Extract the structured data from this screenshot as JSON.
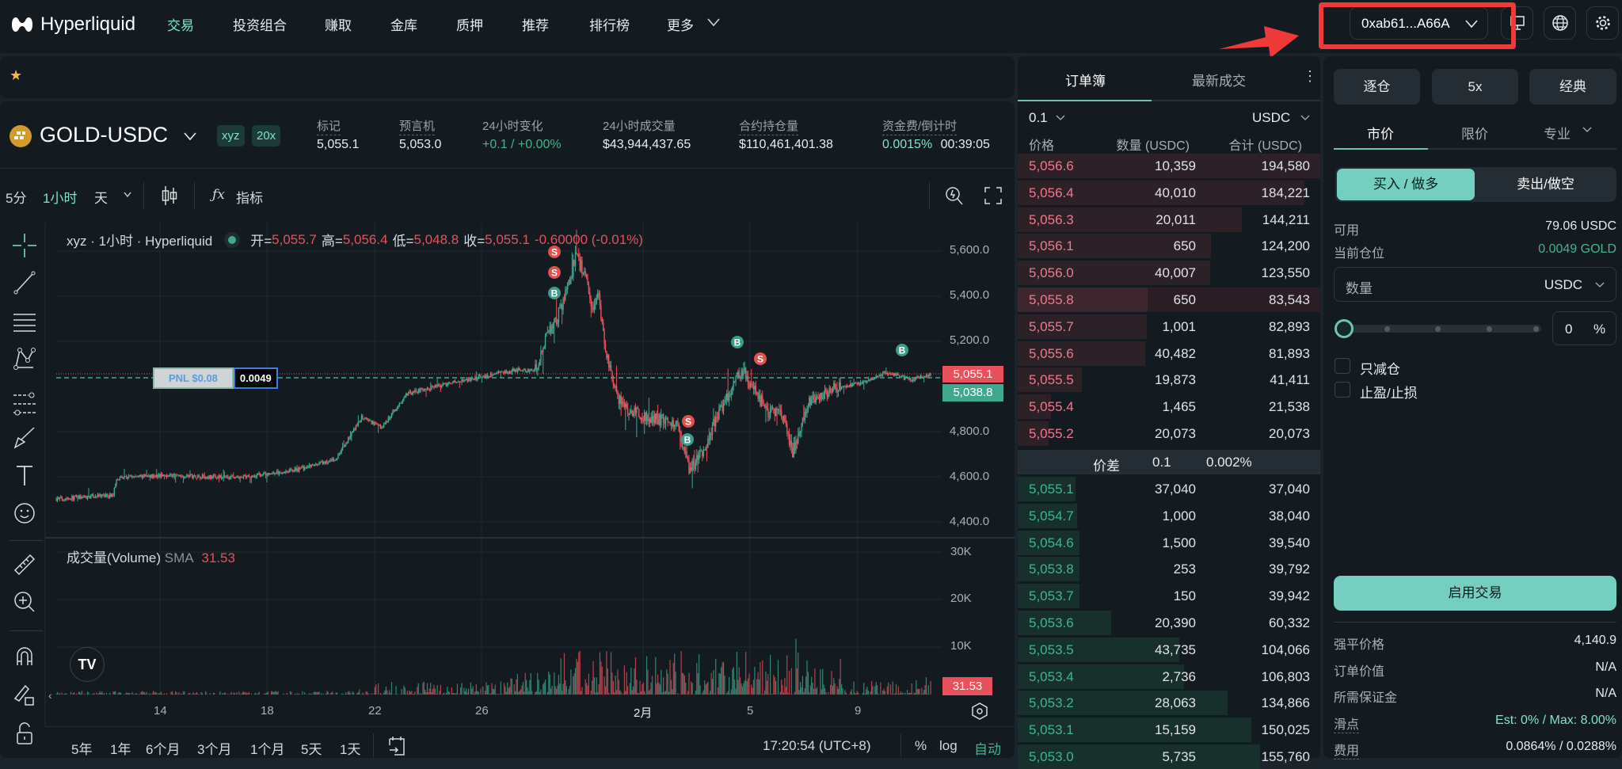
{
  "nav": {
    "brand": "Hyperliquid",
    "items": [
      "交易",
      "投资组合",
      "赚取",
      "金库",
      "质押",
      "推荐",
      "排行榜",
      "更多"
    ],
    "wallet": "0xab61...A66A"
  },
  "symbol": {
    "name": "GOLD-USDC",
    "dex": "xyz",
    "leverage": "20x",
    "stats": [
      {
        "label": "标记",
        "value": "5,055.1"
      },
      {
        "label": "预言机",
        "value": "5,053.0"
      },
      {
        "label": "24小时变化",
        "value": "+0.1 / +0.00%"
      },
      {
        "label": "24小时成交量",
        "value": "$43,944,437.65"
      },
      {
        "label": "合约持仓量",
        "value": "$110,461,401.38"
      },
      {
        "label": "资金费/倒计时",
        "value": "0.0015%",
        "value2": "00:39:05"
      }
    ]
  },
  "chart_toolbar": {
    "intervals": [
      "5分",
      "1小时",
      "天"
    ],
    "active_interval": "1小时",
    "indicators": "指标"
  },
  "chart": {
    "legend_title": "xyz · 1小时 · Hyperliquid",
    "ohlc": {
      "o_label": "开=",
      "o": "5,055.7",
      "h_label": "高=",
      "h": "5,056.4",
      "l_label": "低=",
      "l": "5,048.8",
      "c_label": "收=",
      "c": "5,055.1",
      "change": "-0.60000 (-0.01%)"
    },
    "price_ticks": [
      "5,600.0",
      "5,400.0",
      "5,200.0",
      "4,800.0",
      "4,600.0",
      "4,400.0"
    ],
    "last_price": "5,055.1",
    "entry_price": "5,038.8",
    "pnl_label": "PNL $0.08",
    "position_size": "0.0049",
    "volume_label": "成交量(Volume)",
    "sma_label": "SMA",
    "sma_value": "31.53",
    "volume_ticks": [
      "30K",
      "20K",
      "10K"
    ],
    "time_ticks": [
      "14",
      "18",
      "22",
      "26",
      "2月",
      "5",
      "9"
    ],
    "markers": [
      "S",
      "S",
      "B",
      "B",
      "S",
      "S",
      "B",
      "B"
    ],
    "price_outline": [
      [
        "01-10 03",
        4502
      ],
      [
        "01-12 06",
        4519
      ],
      [
        "01-12 09",
        4596
      ],
      [
        "01-14 07",
        4607
      ],
      [
        "01-16 23",
        4596
      ],
      [
        "01-19 03",
        4631
      ],
      [
        "01-20 14",
        4677
      ],
      [
        "01-21 13",
        4863
      ],
      [
        "01-22 07",
        4818
      ],
      [
        "01-23 06",
        4968
      ],
      [
        "01-24 23",
        5017
      ],
      [
        "01-27 09",
        5074
      ],
      [
        "01-28 03",
        5074
      ],
      [
        "01-28 08",
        5193
      ],
      [
        "01-28 19",
        5284
      ],
      [
        "01-29 07",
        5449
      ],
      [
        "01-29 13",
        5579
      ],
      [
        "01-29 22",
        5495
      ],
      [
        "01-30 03",
        5333
      ],
      [
        "01-30 09",
        5425
      ],
      [
        "01-30 15",
        5179
      ],
      [
        "01-31 00",
        4982
      ],
      [
        "01-31 09",
        4898
      ],
      [
        "02-01 07",
        4863
      ],
      [
        "02-02 07",
        4842
      ],
      [
        "02-02 19",
        4631
      ],
      [
        "02-03 07",
        4702
      ],
      [
        "02-03 19",
        4863
      ],
      [
        "02-04 19",
        5074
      ],
      [
        "02-05 07",
        4968
      ],
      [
        "02-05 18",
        4888
      ],
      [
        "02-06 07",
        4863
      ],
      [
        "02-06 16",
        4712
      ],
      [
        "02-07 06",
        4933
      ],
      [
        "02-08 05",
        4993
      ],
      [
        "02-09 10",
        5017
      ],
      [
        "02-10 03",
        5063
      ],
      [
        "02-11 02",
        5028
      ],
      [
        "02-11 20",
        5055
      ]
    ],
    "colors": {
      "up": "#3fa98f",
      "down": "#e8505b"
    }
  },
  "range_bar": {
    "ranges": [
      "5年",
      "1年",
      "6个月",
      "3个月",
      "1个月",
      "5天",
      "1天"
    ],
    "clock": "17:20:54 (UTC+8)",
    "percent": "%",
    "log": "log",
    "auto": "自动"
  },
  "orderbook": {
    "tabs": [
      "订单簿",
      "最新成交"
    ],
    "tick": "0.1",
    "unit": "USDC",
    "headers": [
      "价格",
      "数量 (USDC)",
      "合计 (USDC)"
    ],
    "asks": [
      [
        "5,056.6",
        "10,359",
        "194,580"
      ],
      [
        "5,056.4",
        "40,010",
        "184,221"
      ],
      [
        "5,056.3",
        "20,011",
        "144,211"
      ],
      [
        "5,056.1",
        "650",
        "124,200"
      ],
      [
        "5,056.0",
        "40,007",
        "123,550"
      ],
      [
        "5,055.8",
        "650",
        "83,543"
      ],
      [
        "5,055.7",
        "1,001",
        "82,893"
      ],
      [
        "5,055.6",
        "40,482",
        "81,893"
      ],
      [
        "5,055.5",
        "19,873",
        "41,411"
      ],
      [
        "5,055.4",
        "1,465",
        "21,538"
      ],
      [
        "5,055.2",
        "20,073",
        "20,073"
      ]
    ],
    "spread": {
      "label": "价差",
      "value": "0.1",
      "pct": "0.002%"
    },
    "bids": [
      [
        "5,055.1",
        "37,040",
        "37,040"
      ],
      [
        "5,054.7",
        "1,000",
        "38,040"
      ],
      [
        "5,054.6",
        "1,500",
        "39,540"
      ],
      [
        "5,053.8",
        "253",
        "39,792"
      ],
      [
        "5,053.7",
        "150",
        "39,942"
      ],
      [
        "5,053.6",
        "20,390",
        "60,332"
      ],
      [
        "5,053.5",
        "43,735",
        "104,066"
      ],
      [
        "5,053.4",
        "2,736",
        "106,803"
      ],
      [
        "5,053.2",
        "28,063",
        "134,866"
      ],
      [
        "5,053.1",
        "15,159",
        "150,025"
      ],
      [
        "5,053.0",
        "5,735",
        "155,760"
      ]
    ]
  },
  "trade": {
    "margin_mode": "逐仓",
    "leverage": "5x",
    "mode": "经典",
    "order_tabs": [
      "市价",
      "限价",
      "专业"
    ],
    "buy": "买入 / 做多",
    "sell": "卖出/做空",
    "available_label": "可用",
    "available": "79.06 USDC",
    "position_label": "当前仓位",
    "position": "0.0049 GOLD",
    "qty_placeholder": "数量",
    "qty_unit": "USDC",
    "slider_percent": 0,
    "percent_value": "0",
    "percent_sign": "%",
    "reduce_only": "只减仓",
    "tp_sl": "止盈/止损",
    "enable": "启用交易",
    "info": [
      {
        "label": "强平价格",
        "value": "4,140.9"
      },
      {
        "label": "订单价值",
        "value": "N/A"
      },
      {
        "label": "所需保证金",
        "value": "N/A"
      },
      {
        "label": "滑点",
        "value": "Est: 0% / Max: 8.00%"
      },
      {
        "label": "费用",
        "value": "0.0864% / 0.0288%"
      }
    ]
  },
  "colors": {
    "accent": "#7ee3cf",
    "button": "#74cfc1",
    "ask": "#ee7a8e",
    "bid": "#3fb68b",
    "annotation": "#f03a3a"
  }
}
